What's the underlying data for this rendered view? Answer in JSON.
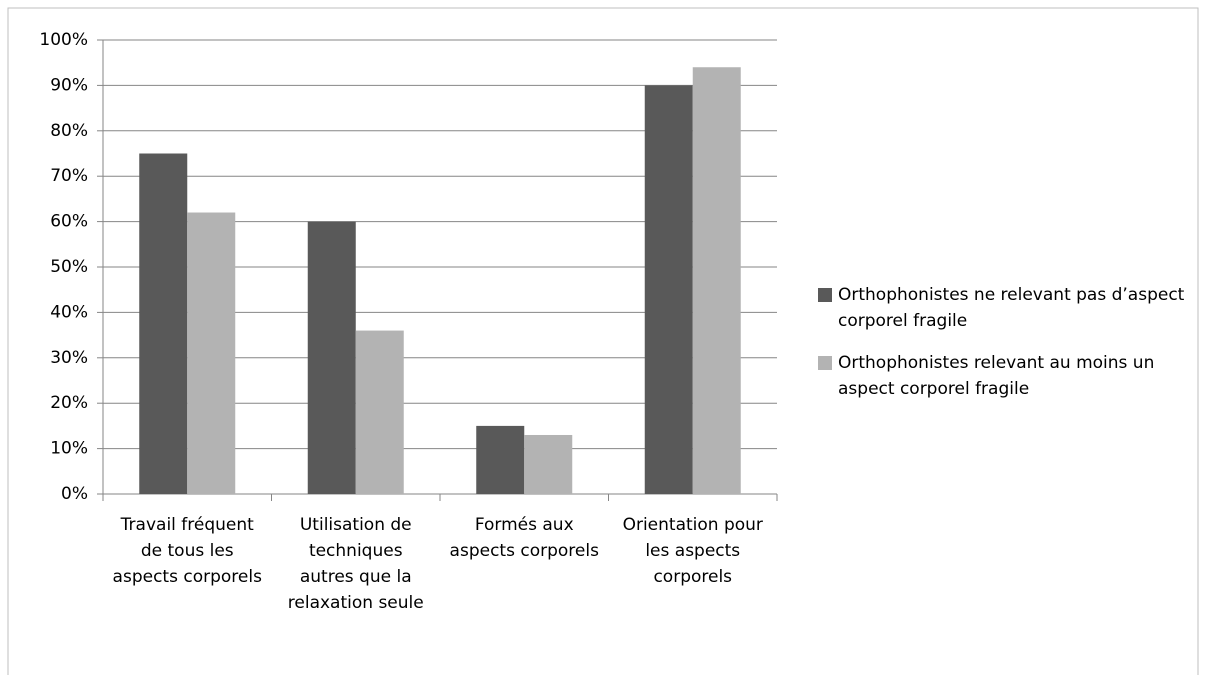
{
  "chart_data": {
    "type": "bar",
    "categories": [
      "Travail fréquent de tous les aspects corporels",
      "Utilisation de techniques autres que la relaxation seule",
      "Formés aux aspects corporels",
      "Orientation pour les aspects corporels"
    ],
    "series": [
      {
        "name": "Orthophonistes ne relevant pas d’aspect corporel fragile",
        "color": "#595959",
        "values": [
          75,
          60,
          15,
          90
        ]
      },
      {
        "name": "Orthophonistes relevant au moins un aspect corporel fragile",
        "color": "#b3b3b3",
        "values": [
          62,
          36,
          13,
          94
        ]
      }
    ],
    "ylim": [
      0,
      100
    ],
    "yticks": [
      {
        "value": 0,
        "label": "0%"
      },
      {
        "value": 10,
        "label": "10%"
      },
      {
        "value": 20,
        "label": "20%"
      },
      {
        "value": 30,
        "label": "30%"
      },
      {
        "value": 40,
        "label": "40%"
      },
      {
        "value": 50,
        "label": "50%"
      },
      {
        "value": 60,
        "label": "60%"
      },
      {
        "value": 70,
        "label": "70%"
      },
      {
        "value": 80,
        "label": "80%"
      },
      {
        "value": 90,
        "label": "90%"
      },
      {
        "value": 100,
        "label": "100%"
      }
    ],
    "grid": true,
    "legend": "right"
  }
}
